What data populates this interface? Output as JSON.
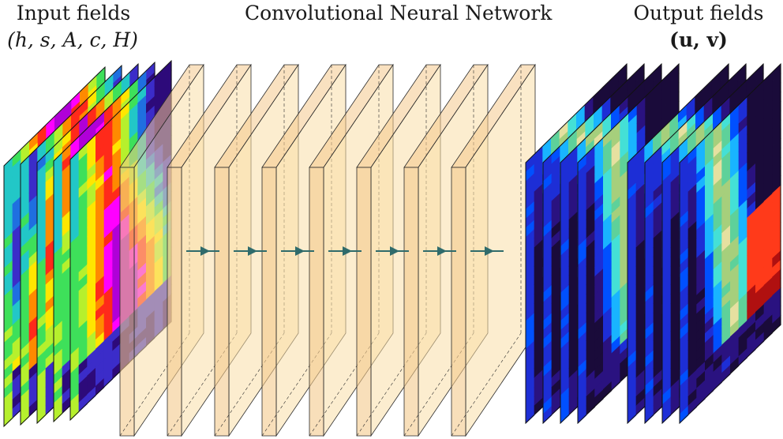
{
  "labels": {
    "input_title": "Input fields",
    "input_vars": "(h, s, A, c, H)",
    "cnn_title": "Convolutional Neural Network",
    "output_title": "Output fields",
    "output_vars": "(u, v)"
  },
  "colors": {
    "layer_face": "#f9dea8",
    "layer_side": "#f4c98c",
    "layer_edge": "#2a2a2a",
    "arrow": "#2f6b6b",
    "input_palette": [
      "#2d0a7a",
      "#3b2cc9",
      "#1f6fe0",
      "#22c7c7",
      "#3ee05a",
      "#b6f02d",
      "#ffe600",
      "#ff8a00",
      "#ff2a1a",
      "#ff00ff",
      "#b000d8"
    ],
    "output_palette": [
      "#1a0b3a",
      "#2a1280",
      "#1d2ed6",
      "#0050ff",
      "#19b4ff",
      "#44e0d6",
      "#5ed19a",
      "#a6cf7c",
      "#e6e0a0",
      "#ff3a1a",
      "#b01010"
    ]
  }
}
